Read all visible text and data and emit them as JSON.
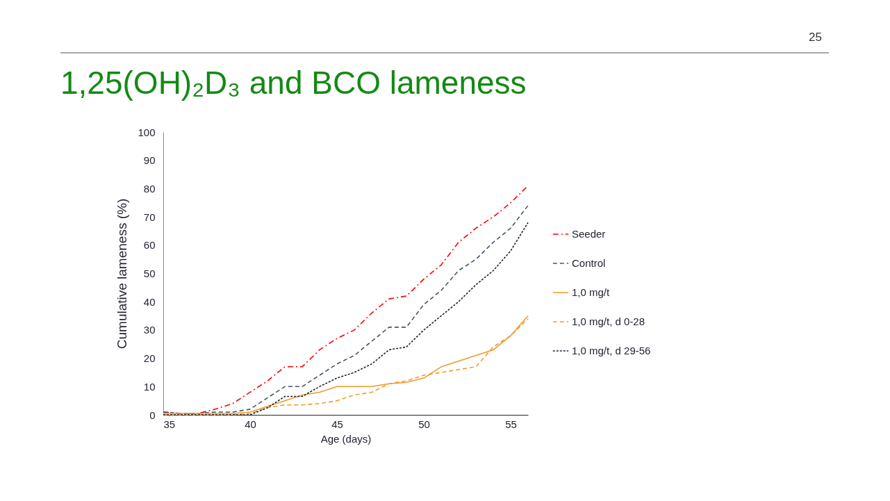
{
  "chart_data": {
    "type": "line",
    "title": "1,25(OH)₂D₃ and BCO lameness",
    "xlabel": "Age (days)",
    "ylabel": "Cumulative lameness (%)",
    "x": [
      35,
      36,
      37,
      38,
      39,
      40,
      41,
      42,
      43,
      44,
      45,
      46,
      47,
      48,
      49,
      50,
      51,
      52,
      53,
      54,
      55,
      56
    ],
    "xlim": [
      35,
      56
    ],
    "xticks": [
      35,
      40,
      45,
      50,
      55
    ],
    "ylim": [
      0,
      100
    ],
    "yticks": [
      0,
      10,
      20,
      30,
      40,
      50,
      60,
      70,
      80,
      90,
      100
    ],
    "grid": false,
    "legend": "right",
    "marker": "none",
    "annotations": [
      "25"
    ],
    "series": [
      {
        "name": "Seeder",
        "color": "#ff0000",
        "line_style": "dashdot",
        "values": [
          1,
          0.5,
          0.5,
          2,
          4,
          8,
          12,
          17,
          17,
          23,
          27,
          30,
          36,
          41,
          42,
          48,
          53,
          61,
          66,
          70,
          75,
          81
        ]
      },
      {
        "name": "Control",
        "color": "#44546a",
        "line_style": "dashed",
        "values": [
          1,
          0.5,
          0.5,
          1,
          1,
          2,
          6,
          10,
          10,
          14,
          18,
          21,
          26,
          31,
          31,
          39,
          44,
          51,
          55,
          61,
          66,
          74
        ]
      },
      {
        "name": "1,0 mg/t",
        "color": "#f09a2a",
        "line_style": "solid",
        "values": [
          0.5,
          0.5,
          0.5,
          0.5,
          0.5,
          1,
          3,
          5,
          7,
          8,
          10,
          10,
          10,
          11,
          11.5,
          13,
          17,
          19,
          21,
          23,
          28,
          35
        ]
      },
      {
        "name": "1,0 mg/t, d 0-28",
        "color": "#f09a2a",
        "line_style": "dashed",
        "values": [
          0,
          0,
          0,
          0,
          0,
          0.5,
          2.5,
          3.5,
          3.5,
          4,
          5,
          7,
          8,
          11,
          12,
          14,
          15,
          16,
          17,
          24,
          28,
          34
        ]
      },
      {
        "name": "1,0 mg/t, d 29-56",
        "color": "#1f2133",
        "line_style": "dotted",
        "values": [
          0,
          0,
          0,
          0,
          0,
          0,
          2.5,
          6.5,
          6.5,
          10,
          13,
          15,
          18,
          23,
          24,
          30,
          35,
          40,
          46,
          51,
          58,
          68
        ]
      }
    ]
  }
}
